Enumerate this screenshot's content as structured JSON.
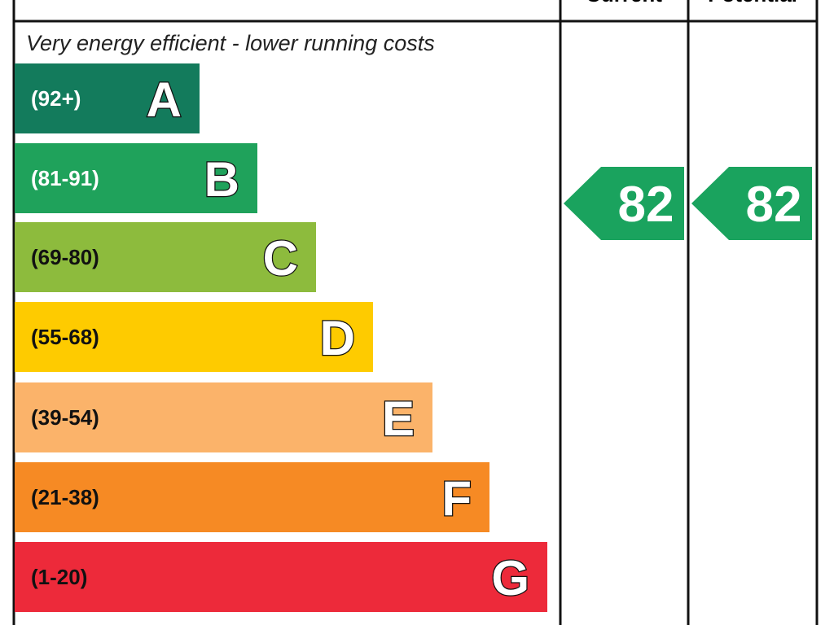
{
  "header": {
    "columns": [
      "Current",
      "Potential"
    ]
  },
  "caption": "Very energy efficient - lower running costs",
  "bands": [
    {
      "range": "(92+)",
      "letter": "A",
      "color": "#137b5c",
      "text_color": "#ffffff"
    },
    {
      "range": "(81-91)",
      "letter": "B",
      "color": "#1fa25b",
      "text_color": "#ffffff"
    },
    {
      "range": "(69-80)",
      "letter": "C",
      "color": "#8dbb3d",
      "text_color": "#111111"
    },
    {
      "range": "(55-68)",
      "letter": "D",
      "color": "#fecb00",
      "text_color": "#111111"
    },
    {
      "range": "(39-54)",
      "letter": "E",
      "color": "#fbb36a",
      "text_color": "#111111"
    },
    {
      "range": "(21-38)",
      "letter": "F",
      "color": "#f68a24",
      "text_color": "#111111"
    },
    {
      "range": "(1-20)",
      "letter": "G",
      "color": "#ed2a3a",
      "text_color": "#111111"
    }
  ],
  "current": {
    "rating": 82,
    "color": "#1aa35e"
  },
  "potential": {
    "rating": 82,
    "color": "#1aa35e"
  }
}
